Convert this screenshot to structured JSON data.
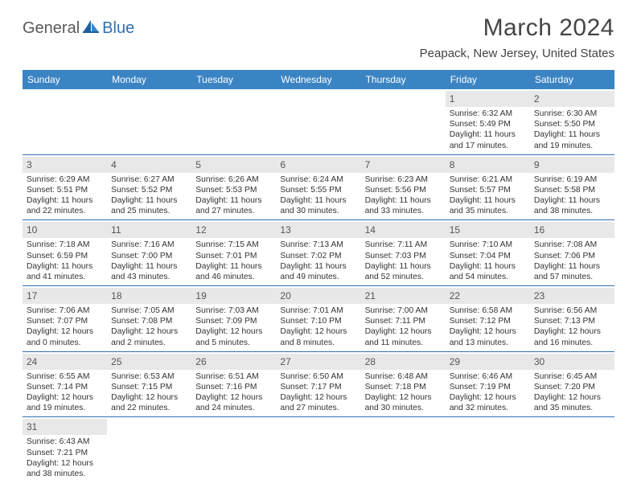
{
  "logo": {
    "part1": "General",
    "part2": "Blue"
  },
  "title": "March 2024",
  "location": "Peapack, New Jersey, United States",
  "colors": {
    "header_bg": "#3b84c4",
    "row_divider": "#2f6fb0",
    "daynum_bg": "#e8e8e8",
    "text": "#333333",
    "logo_gray": "#5a5a5a",
    "logo_blue": "#2f6fb0"
  },
  "dow": [
    "Sunday",
    "Monday",
    "Tuesday",
    "Wednesday",
    "Thursday",
    "Friday",
    "Saturday"
  ],
  "days": [
    {
      "n": 1,
      "sr": "6:32 AM",
      "ss": "5:49 PM",
      "dh": 11,
      "dm": 17
    },
    {
      "n": 2,
      "sr": "6:30 AM",
      "ss": "5:50 PM",
      "dh": 11,
      "dm": 19
    },
    {
      "n": 3,
      "sr": "6:29 AM",
      "ss": "5:51 PM",
      "dh": 11,
      "dm": 22
    },
    {
      "n": 4,
      "sr": "6:27 AM",
      "ss": "5:52 PM",
      "dh": 11,
      "dm": 25
    },
    {
      "n": 5,
      "sr": "6:26 AM",
      "ss": "5:53 PM",
      "dh": 11,
      "dm": 27
    },
    {
      "n": 6,
      "sr": "6:24 AM",
      "ss": "5:55 PM",
      "dh": 11,
      "dm": 30
    },
    {
      "n": 7,
      "sr": "6:23 AM",
      "ss": "5:56 PM",
      "dh": 11,
      "dm": 33
    },
    {
      "n": 8,
      "sr": "6:21 AM",
      "ss": "5:57 PM",
      "dh": 11,
      "dm": 35
    },
    {
      "n": 9,
      "sr": "6:19 AM",
      "ss": "5:58 PM",
      "dh": 11,
      "dm": 38
    },
    {
      "n": 10,
      "sr": "7:18 AM",
      "ss": "6:59 PM",
      "dh": 11,
      "dm": 41
    },
    {
      "n": 11,
      "sr": "7:16 AM",
      "ss": "7:00 PM",
      "dh": 11,
      "dm": 43
    },
    {
      "n": 12,
      "sr": "7:15 AM",
      "ss": "7:01 PM",
      "dh": 11,
      "dm": 46
    },
    {
      "n": 13,
      "sr": "7:13 AM",
      "ss": "7:02 PM",
      "dh": 11,
      "dm": 49
    },
    {
      "n": 14,
      "sr": "7:11 AM",
      "ss": "7:03 PM",
      "dh": 11,
      "dm": 52
    },
    {
      "n": 15,
      "sr": "7:10 AM",
      "ss": "7:04 PM",
      "dh": 11,
      "dm": 54
    },
    {
      "n": 16,
      "sr": "7:08 AM",
      "ss": "7:06 PM",
      "dh": 11,
      "dm": 57
    },
    {
      "n": 17,
      "sr": "7:06 AM",
      "ss": "7:07 PM",
      "dh": 12,
      "dm": 0
    },
    {
      "n": 18,
      "sr": "7:05 AM",
      "ss": "7:08 PM",
      "dh": 12,
      "dm": 2
    },
    {
      "n": 19,
      "sr": "7:03 AM",
      "ss": "7:09 PM",
      "dh": 12,
      "dm": 5
    },
    {
      "n": 20,
      "sr": "7:01 AM",
      "ss": "7:10 PM",
      "dh": 12,
      "dm": 8
    },
    {
      "n": 21,
      "sr": "7:00 AM",
      "ss": "7:11 PM",
      "dh": 12,
      "dm": 11
    },
    {
      "n": 22,
      "sr": "6:58 AM",
      "ss": "7:12 PM",
      "dh": 12,
      "dm": 13
    },
    {
      "n": 23,
      "sr": "6:56 AM",
      "ss": "7:13 PM",
      "dh": 12,
      "dm": 16
    },
    {
      "n": 24,
      "sr": "6:55 AM",
      "ss": "7:14 PM",
      "dh": 12,
      "dm": 19
    },
    {
      "n": 25,
      "sr": "6:53 AM",
      "ss": "7:15 PM",
      "dh": 12,
      "dm": 22
    },
    {
      "n": 26,
      "sr": "6:51 AM",
      "ss": "7:16 PM",
      "dh": 12,
      "dm": 24
    },
    {
      "n": 27,
      "sr": "6:50 AM",
      "ss": "7:17 PM",
      "dh": 12,
      "dm": 27
    },
    {
      "n": 28,
      "sr": "6:48 AM",
      "ss": "7:18 PM",
      "dh": 12,
      "dm": 30
    },
    {
      "n": 29,
      "sr": "6:46 AM",
      "ss": "7:19 PM",
      "dh": 12,
      "dm": 32
    },
    {
      "n": 30,
      "sr": "6:45 AM",
      "ss": "7:20 PM",
      "dh": 12,
      "dm": 35
    },
    {
      "n": 31,
      "sr": "6:43 AM",
      "ss": "7:21 PM",
      "dh": 12,
      "dm": 38
    }
  ],
  "first_weekday": 5,
  "labels": {
    "sunrise": "Sunrise:",
    "sunset": "Sunset:",
    "daylight": "Daylight:",
    "hours": "hours",
    "and": "and",
    "minutes": "minutes."
  }
}
